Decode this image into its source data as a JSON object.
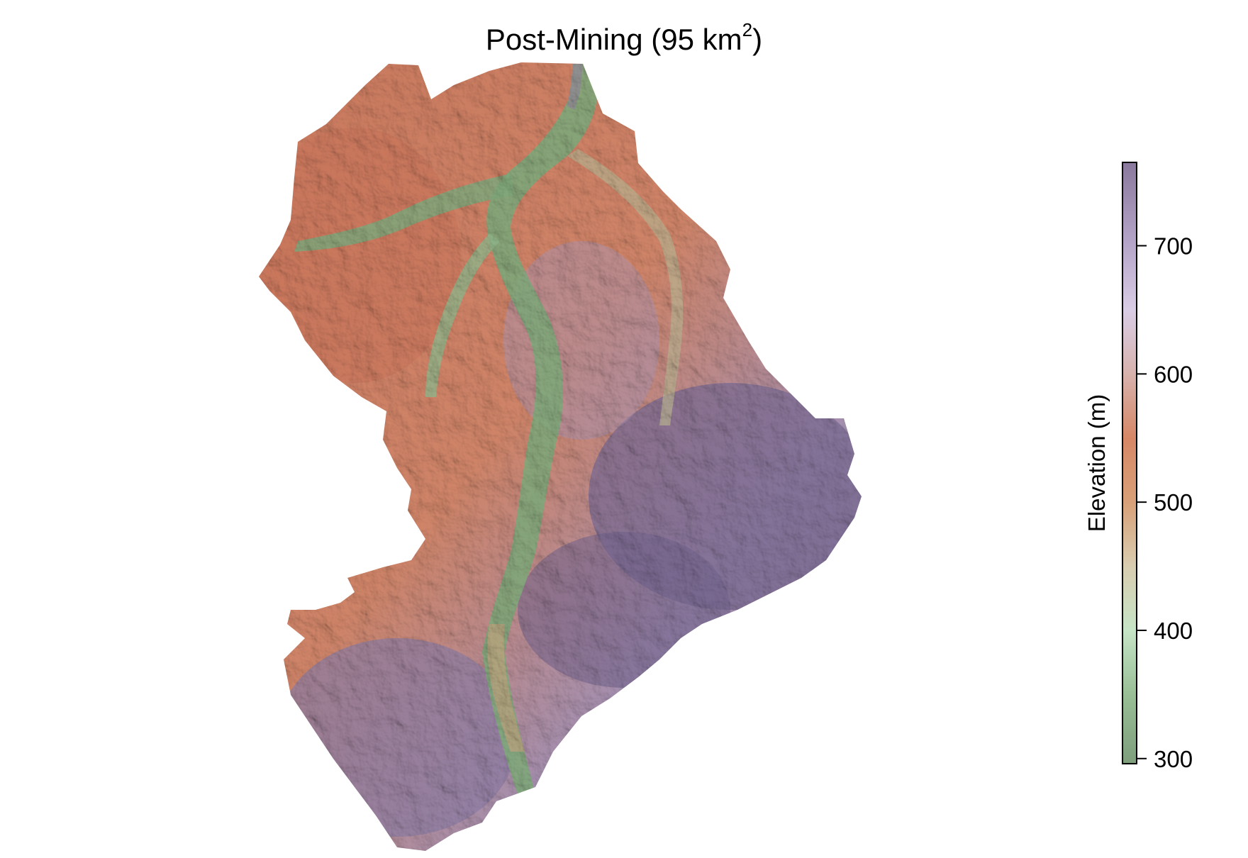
{
  "map": {
    "title_main": "Post-Mining (95 km",
    "title_sup": "2",
    "title_end": ")"
  },
  "legend": {
    "title": "Elevation (m)",
    "ticks": [
      300,
      400,
      500,
      600,
      700
    ],
    "tick_labels": [
      "300",
      "400",
      "500",
      "600",
      "700"
    ],
    "range": [
      296,
      765
    ],
    "color_stops": [
      {
        "value": 296,
        "color": "#7e9e7c"
      },
      {
        "value": 350,
        "color": "#98bf96"
      },
      {
        "value": 400,
        "color": "#c6e4c6"
      },
      {
        "value": 450,
        "color": "#d9cdb0"
      },
      {
        "value": 500,
        "color": "#d8a078"
      },
      {
        "value": 550,
        "color": "#d68766"
      },
      {
        "value": 600,
        "color": "#d8b2ad"
      },
      {
        "value": 650,
        "color": "#d9cde6"
      },
      {
        "value": 700,
        "color": "#b6a6c9"
      },
      {
        "value": 765,
        "color": "#8a789d"
      }
    ]
  },
  "colors": {
    "low_green": "#6f9a6c",
    "mid_orange": "#cc7a5e",
    "high_purple": "#8a7ba1",
    "dark_purple": "#5d4e6d",
    "water": "#8f8f8f"
  }
}
